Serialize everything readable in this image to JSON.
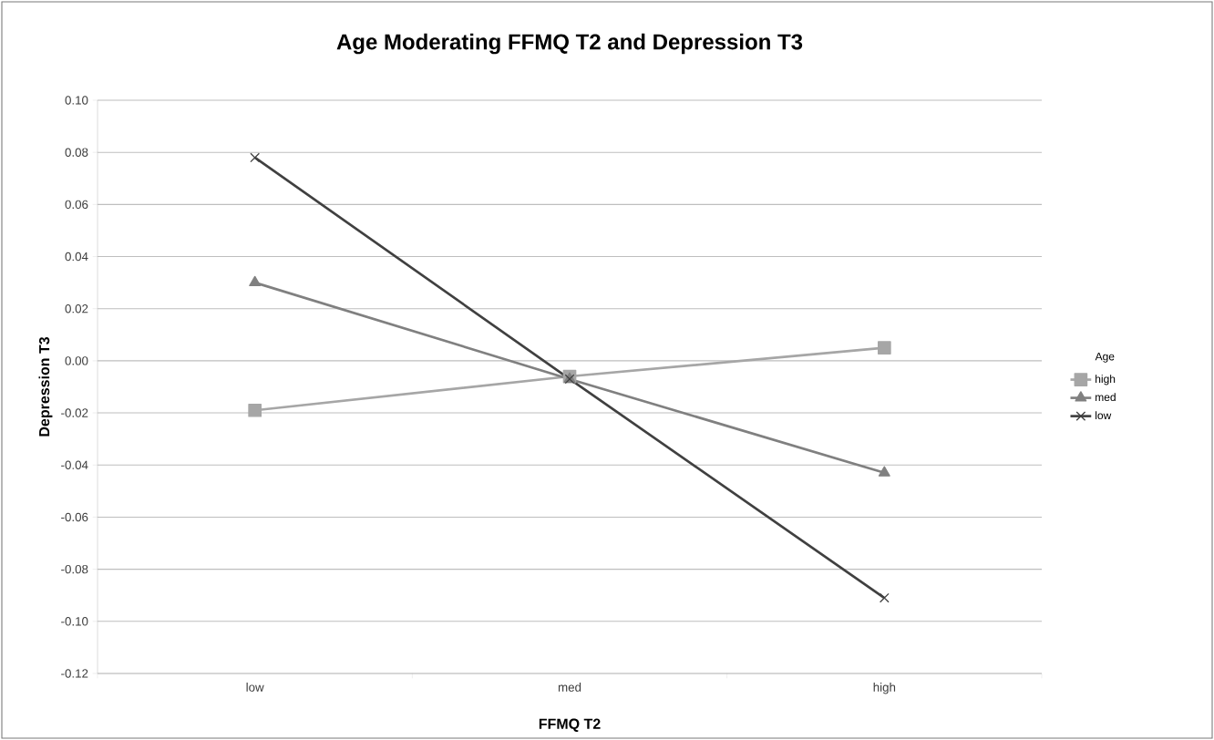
{
  "chart_data": {
    "type": "line",
    "title": "Age Moderating FFMQ T2 and Depression T3",
    "xlabel": "FFMQ T2",
    "ylabel": "Depression T3",
    "legend_title": "Age",
    "categories": [
      "low",
      "med",
      "high"
    ],
    "series": [
      {
        "name": "high",
        "color": "#a6a6a6",
        "marker": "square",
        "values": [
          -0.019,
          -0.006,
          0.005
        ]
      },
      {
        "name": "med",
        "color": "#808080",
        "marker": "triangle",
        "values": [
          0.03,
          -0.007,
          -0.043
        ]
      },
      {
        "name": "low",
        "color": "#404040",
        "marker": "cross",
        "values": [
          0.078,
          -0.007,
          -0.091
        ]
      }
    ],
    "ylim": [
      -0.12,
      0.1
    ],
    "yticks": [
      {
        "value": -0.12,
        "label": "-0.12"
      },
      {
        "value": -0.1,
        "label": "-0.10"
      },
      {
        "value": -0.08,
        "label": "-0.08"
      },
      {
        "value": -0.06,
        "label": "-0.06"
      },
      {
        "value": -0.04,
        "label": "-0.04"
      },
      {
        "value": -0.02,
        "label": "-0.02"
      },
      {
        "value": 0.0,
        "label": "0.00"
      },
      {
        "value": 0.02,
        "label": "0.02"
      },
      {
        "value": 0.04,
        "label": "0.04"
      },
      {
        "value": 0.06,
        "label": "0.06"
      },
      {
        "value": 0.08,
        "label": "0.08"
      },
      {
        "value": 0.1,
        "label": "0.10"
      }
    ],
    "grid": "y",
    "legend": "right",
    "line_style": "solid"
  }
}
